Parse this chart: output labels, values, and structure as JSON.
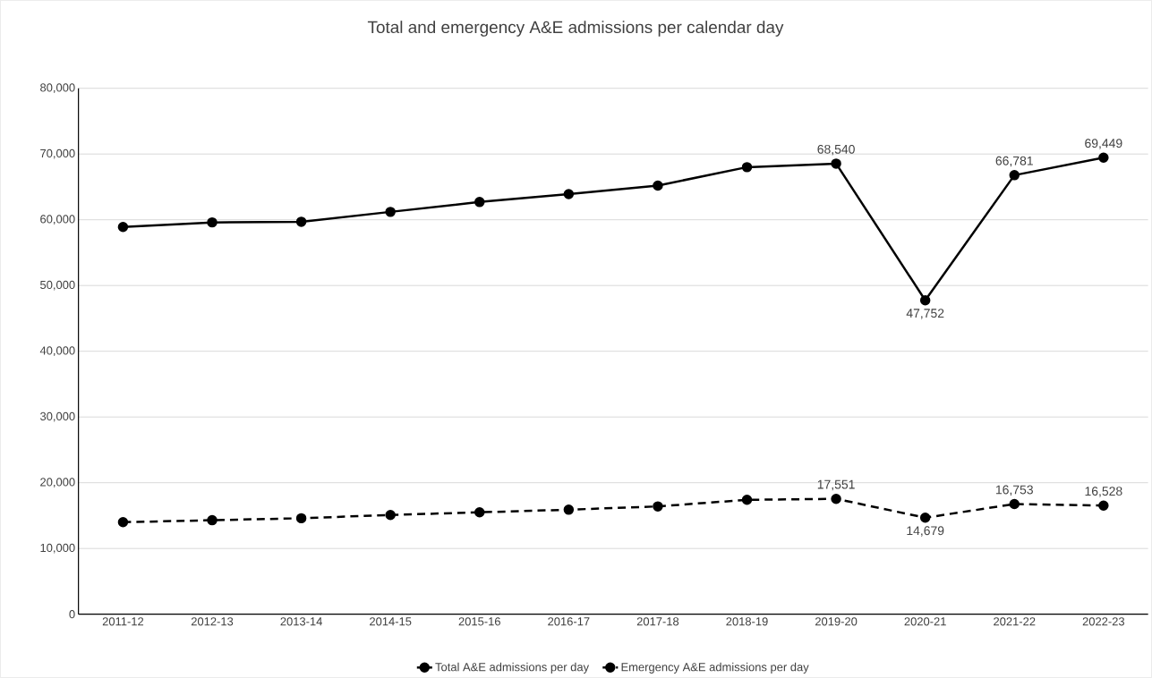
{
  "chart_data": {
    "type": "line",
    "title": "Total and emergency A&E admissions per calendar day",
    "categories": [
      "2011-12",
      "2012-13",
      "2013-14",
      "2014-15",
      "2015-16",
      "2016-17",
      "2017-18",
      "2018-19",
      "2019-20",
      "2020-21",
      "2021-22",
      "2022-23"
    ],
    "series": [
      {
        "name": "Total A&E admissions per day",
        "color": "#000000",
        "line_style": "solid",
        "values": [
          58900,
          59600,
          59700,
          61200,
          62700,
          63900,
          65200,
          68000,
          68540,
          47752,
          66781,
          69449
        ],
        "value_labels": [
          null,
          null,
          null,
          null,
          null,
          null,
          null,
          null,
          "68,540",
          "47,752",
          "66,781",
          "69,449"
        ]
      },
      {
        "name": "Emergency A&E admissions per day",
        "color": "#000000",
        "line_style": "dashed",
        "values": [
          14000,
          14300,
          14600,
          15100,
          15500,
          15900,
          16400,
          17400,
          17551,
          14679,
          16753,
          16528
        ],
        "value_labels": [
          null,
          null,
          null,
          null,
          null,
          null,
          null,
          null,
          "17,551",
          "14,679",
          "16,753",
          "16,528"
        ]
      }
    ],
    "ylim": [
      0,
      80000
    ],
    "yticks": [
      {
        "value": 0,
        "label": "0"
      },
      {
        "value": 10000,
        "label": "10,000"
      },
      {
        "value": 20000,
        "label": "20,000"
      },
      {
        "value": 30000,
        "label": "30,000"
      },
      {
        "value": 40000,
        "label": "40,000"
      },
      {
        "value": 50000,
        "label": "50,000"
      },
      {
        "value": 60000,
        "label": "60,000"
      },
      {
        "value": 70000,
        "label": "70,000"
      },
      {
        "value": 80000,
        "label": "80,000"
      }
    ],
    "grid": "y",
    "legend": "bottom",
    "marker": "circle"
  }
}
